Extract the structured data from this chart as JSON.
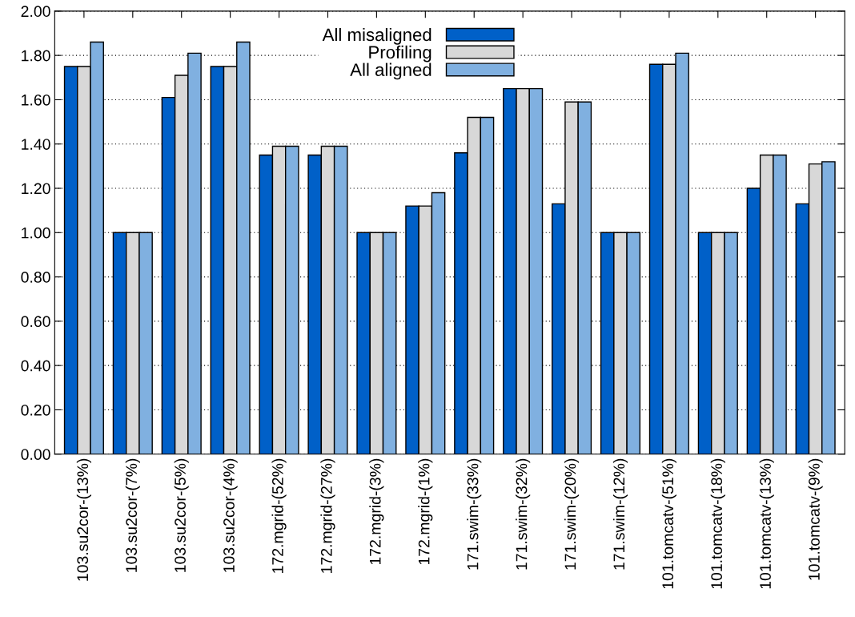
{
  "chart_data": {
    "type": "bar",
    "categories": [
      "103.su2cor-(13%)",
      "103.su2cor-(7%)",
      "103.su2cor-(5%)",
      "103.su2cor-(4%)",
      "172.mgrid-(52%)",
      "172.mgrid-(27%)",
      "172.mgrid-(3%)",
      "172.mgrid-(1%)",
      "171.swim-(33%)",
      "171.swim-(32%)",
      "171.swim-(20%)",
      "171.swim-(12%)",
      "101.tomcatv-(51%)",
      "101.tomcatv-(18%)",
      "101.tomcatv-(13%)",
      "101.tomcatv-(9%)"
    ],
    "series": [
      {
        "name": "All misaligned",
        "color": "#0060c8",
        "values": [
          1.75,
          1.0,
          1.61,
          1.75,
          1.35,
          1.35,
          1.0,
          1.12,
          1.36,
          1.65,
          1.13,
          1.0,
          1.76,
          1.0,
          1.2,
          1.13
        ]
      },
      {
        "name": "Profiling",
        "color": "#d8d8d8",
        "values": [
          1.75,
          1.0,
          1.71,
          1.75,
          1.39,
          1.39,
          1.0,
          1.12,
          1.52,
          1.65,
          1.59,
          1.0,
          1.76,
          1.0,
          1.35,
          1.31
        ]
      },
      {
        "name": "All aligned",
        "color": "#80b0e0",
        "values": [
          1.86,
          1.0,
          1.81,
          1.86,
          1.39,
          1.39,
          1.0,
          1.18,
          1.52,
          1.65,
          1.59,
          1.0,
          1.81,
          1.0,
          1.35,
          1.32
        ]
      }
    ],
    "ylim": [
      0,
      2
    ],
    "yticks": [
      {
        "value": 0,
        "label": "0.00"
      },
      {
        "value": 0.2,
        "label": "0.20"
      },
      {
        "value": 0.4,
        "label": "0.40"
      },
      {
        "value": 0.6,
        "label": "0.60"
      },
      {
        "value": 0.8,
        "label": "0.80"
      },
      {
        "value": 1.0,
        "label": "1.00"
      },
      {
        "value": 1.2,
        "label": "1.20"
      },
      {
        "value": 1.4,
        "label": "1.40"
      },
      {
        "value": 1.6,
        "label": "1.60"
      },
      {
        "value": 1.8,
        "label": "1.80"
      },
      {
        "value": 2.0,
        "label": "2.00"
      }
    ],
    "grid": "y",
    "legend": "top"
  }
}
